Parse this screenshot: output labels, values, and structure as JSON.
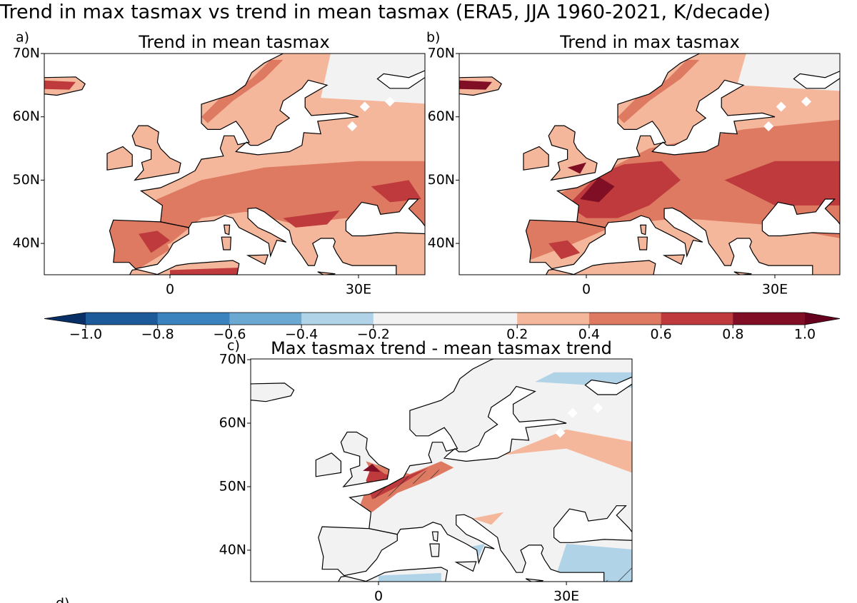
{
  "title": "Trend in max tasmax vs trend in mean tasmax (ERA5, JJA 1960-2021, K/decade)",
  "panels": [
    {
      "label": "a)",
      "title": "Trend in mean tasmax",
      "lat_labels": [
        "70N",
        "60N",
        "50N",
        "40N"
      ],
      "lon_labels": [
        "0",
        "30E"
      ]
    },
    {
      "label": "b)",
      "title": "Trend in max tasmax",
      "lat_labels": [
        "70N",
        "60N",
        "50N",
        "40N"
      ],
      "lon_labels": [
        "0",
        "30E"
      ]
    },
    {
      "label": "c)",
      "title": "Max tasmax trend - mean tasmax trend",
      "lat_labels": [
        "70N",
        "60N",
        "50N",
        "40N"
      ],
      "lon_labels": [
        "0",
        "30E"
      ]
    }
  ],
  "colorbar": {
    "ticks": [
      {
        "value": -1,
        "label": "−1.0"
      },
      {
        "value": -0.8,
        "label": "−0.8"
      },
      {
        "value": -0.6,
        "label": "−0.6"
      },
      {
        "value": -0.4,
        "label": "−0.4"
      },
      {
        "value": -0.2,
        "label": "−0.2"
      },
      0.2,
      0.4,
      0.6,
      0.8,
      {
        "value": 1,
        "label": "1.0"
      }
    ],
    "colors": [
      "#1c5a9a",
      "#3a83bf",
      "#6ba9d3",
      "#b0d3e7",
      "#f2f2f2",
      "#f5b79b",
      "#de7a62",
      "#bf3a3d",
      "#800f26"
    ],
    "extend_colors": [
      "#083066",
      "#67001f"
    ]
  },
  "panel_d_label": "d)"
}
